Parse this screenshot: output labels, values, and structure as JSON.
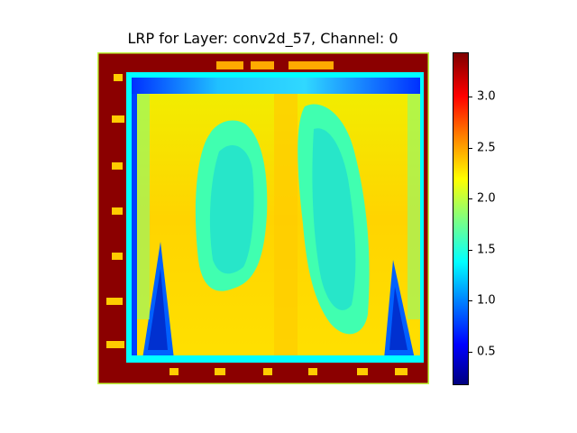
{
  "title": "LRP for Layer: conv2d_57, Channel: 0",
  "colorbar": {
    "colormap": "jet",
    "ticks": [
      "3.0",
      "2.5",
      "2.0",
      "1.5",
      "1.0",
      "0.5"
    ],
    "range": [
      0.15,
      3.45
    ]
  },
  "colors": {
    "border_dark_red": "#8b0000",
    "frame_cyan": "#00ffff",
    "lung_field": "#ffd800",
    "lung_tissue": "#40ffb0"
  }
}
